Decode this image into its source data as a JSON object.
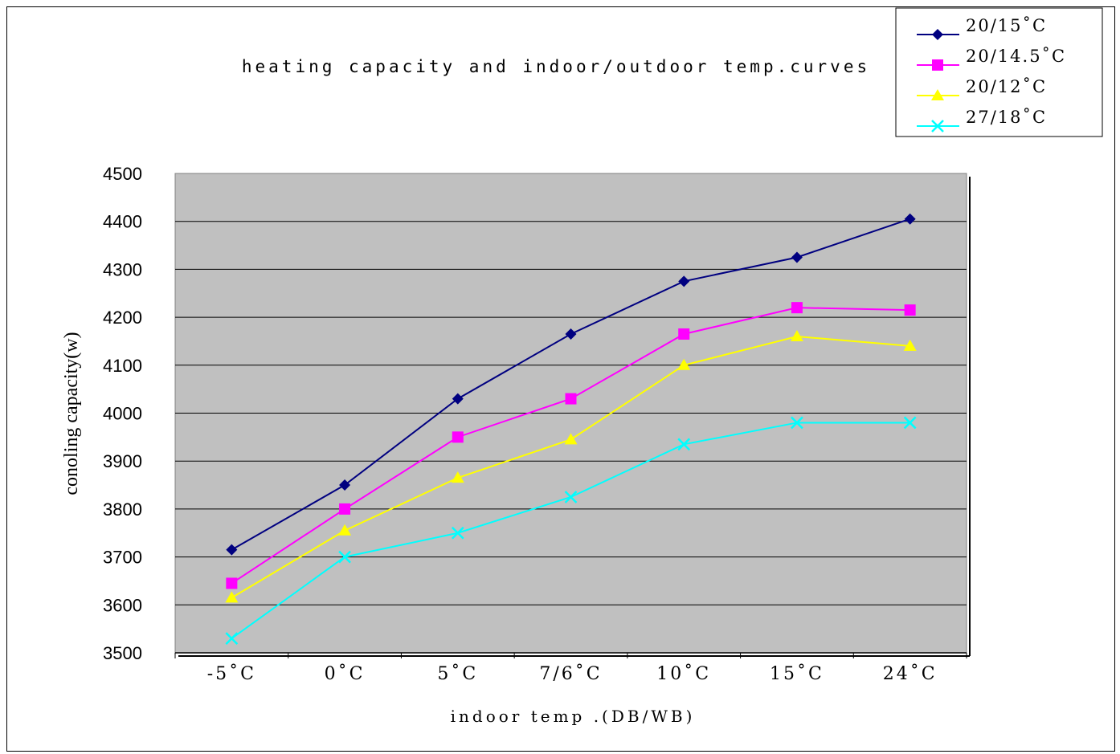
{
  "chart_data": {
    "type": "line",
    "title": "heating capacity and indoor/outdoor temp.curves",
    "xlabel": "indoor temp .(DB/WB)",
    "ylabel": "conoling capacity(w)",
    "categories": [
      "-5˚C",
      "0˚C",
      "5˚C",
      "7/6˚C",
      "10˚C",
      "15˚C",
      "24˚C"
    ],
    "ylim": [
      3500,
      4500
    ],
    "yticks": [
      3500,
      3600,
      3700,
      3800,
      3900,
      4000,
      4100,
      4200,
      4300,
      4400,
      4500
    ],
    "grid": true,
    "legend_position": "top-right",
    "series": [
      {
        "name": "20/15˚C",
        "color": "#000080",
        "marker": "diamond",
        "values": [
          3715,
          3850,
          4030,
          4165,
          4275,
          4325,
          4405
        ]
      },
      {
        "name": "20/14.5˚C",
        "color": "#ff00ff",
        "marker": "square",
        "values": [
          3645,
          3800,
          3950,
          4030,
          4165,
          4220,
          4215
        ]
      },
      {
        "name": "20/12˚C",
        "color": "#ffff00",
        "marker": "triangle",
        "values": [
          3615,
          3755,
          3865,
          3945,
          4100,
          4160,
          4140
        ]
      },
      {
        "name": "27/18˚C",
        "color": "#00ffff",
        "marker": "x",
        "values": [
          3530,
          3700,
          3750,
          3825,
          3935,
          3980,
          3980
        ]
      }
    ]
  },
  "colors": {
    "plot_background": "#c0c0c0",
    "gridline": "#000000"
  }
}
